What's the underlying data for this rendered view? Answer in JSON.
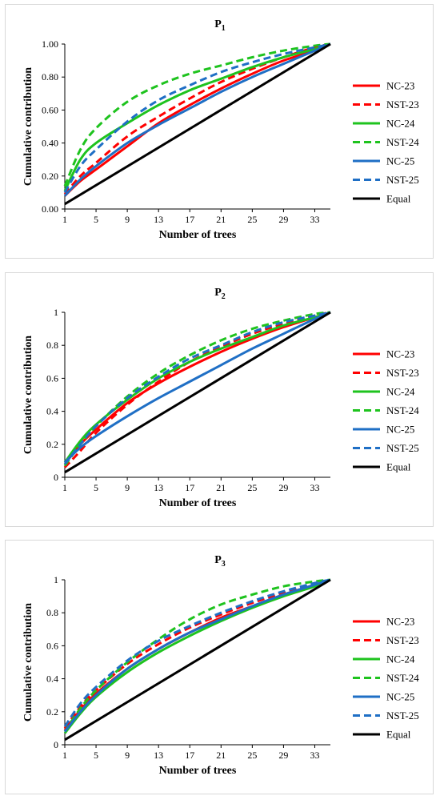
{
  "chart_data": [
    {
      "type": "line",
      "title": "P1",
      "title_main": "P",
      "title_sub": "1",
      "xlabel": "Number of trees",
      "ylabel": "Cumulative contribution",
      "xlim": [
        1,
        35
      ],
      "ylim": [
        0,
        1
      ],
      "xticks": [
        1,
        5,
        9,
        13,
        17,
        21,
        25,
        29,
        33
      ],
      "yticks": [
        0,
        0.2,
        0.4,
        0.6,
        0.8,
        1.0
      ],
      "ytick_labels": [
        "0.00",
        "0.20",
        "0.40",
        "0.60",
        "0.80",
        "1.00"
      ],
      "legend_position": "right",
      "grid": false,
      "series": [
        {
          "name": "NC-23",
          "color": "#ff0000",
          "dash": false,
          "x": [
            1,
            3,
            5,
            9,
            13,
            17,
            21,
            25,
            29,
            33,
            35
          ],
          "y": [
            0.08,
            0.17,
            0.24,
            0.38,
            0.52,
            0.63,
            0.73,
            0.82,
            0.9,
            0.96,
            1.0
          ]
        },
        {
          "name": "NST-23",
          "color": "#ff0000",
          "dash": true,
          "x": [
            1,
            3,
            5,
            9,
            13,
            17,
            21,
            25,
            29,
            33,
            35
          ],
          "y": [
            0.09,
            0.2,
            0.28,
            0.44,
            0.56,
            0.67,
            0.77,
            0.85,
            0.92,
            0.98,
            1.0
          ]
        },
        {
          "name": "NC-24",
          "color": "#1ec31e",
          "dash": false,
          "x": [
            1,
            3,
            5,
            9,
            13,
            17,
            21,
            25,
            29,
            33,
            35
          ],
          "y": [
            0.11,
            0.3,
            0.4,
            0.52,
            0.63,
            0.72,
            0.79,
            0.86,
            0.92,
            0.97,
            1.0
          ]
        },
        {
          "name": "NST-24",
          "color": "#1ec31e",
          "dash": true,
          "x": [
            1,
            3,
            5,
            9,
            13,
            17,
            21,
            25,
            29,
            33,
            35
          ],
          "y": [
            0.14,
            0.36,
            0.49,
            0.65,
            0.75,
            0.82,
            0.87,
            0.92,
            0.96,
            0.99,
            1.0
          ]
        },
        {
          "name": "NC-25",
          "color": "#1f6fc5",
          "dash": false,
          "x": [
            1,
            3,
            5,
            9,
            13,
            17,
            21,
            25,
            29,
            33,
            35
          ],
          "y": [
            0.08,
            0.18,
            0.26,
            0.4,
            0.51,
            0.61,
            0.71,
            0.8,
            0.88,
            0.96,
            1.0
          ]
        },
        {
          "name": "NST-25",
          "color": "#1f6fc5",
          "dash": true,
          "x": [
            1,
            3,
            5,
            9,
            13,
            17,
            21,
            25,
            29,
            33,
            35
          ],
          "y": [
            0.1,
            0.26,
            0.36,
            0.53,
            0.66,
            0.75,
            0.83,
            0.89,
            0.94,
            0.98,
            1.0
          ]
        },
        {
          "name": "Equal",
          "color": "#000000",
          "dash": false,
          "x": [
            1,
            35
          ],
          "y": [
            0.03,
            1.0
          ]
        }
      ]
    },
    {
      "type": "line",
      "title": "P2",
      "title_main": "P",
      "title_sub": "2",
      "xlabel": "Number of trees",
      "ylabel": "Cumulative contribution",
      "xlim": [
        1,
        35
      ],
      "ylim": [
        0,
        1
      ],
      "xticks": [
        1,
        5,
        9,
        13,
        17,
        21,
        25,
        29,
        33
      ],
      "yticks": [
        0,
        0.2,
        0.4,
        0.6,
        0.8,
        1.0
      ],
      "ytick_labels": [
        "0",
        "0.2",
        "0.4",
        "0.6",
        "0.8",
        "1"
      ],
      "legend_position": "right",
      "grid": false,
      "series": [
        {
          "name": "NC-23",
          "color": "#ff0000",
          "dash": false,
          "x": [
            1,
            3,
            5,
            9,
            13,
            17,
            21,
            25,
            29,
            33,
            35
          ],
          "y": [
            0.08,
            0.2,
            0.29,
            0.45,
            0.57,
            0.67,
            0.76,
            0.84,
            0.91,
            0.97,
            1.0
          ]
        },
        {
          "name": "NST-23",
          "color": "#ff0000",
          "dash": true,
          "x": [
            1,
            3,
            5,
            9,
            13,
            17,
            21,
            25,
            29,
            33,
            35
          ],
          "y": [
            0.06,
            0.16,
            0.27,
            0.44,
            0.58,
            0.7,
            0.79,
            0.87,
            0.93,
            0.98,
            1.0
          ]
        },
        {
          "name": "NC-24",
          "color": "#1ec31e",
          "dash": false,
          "x": [
            1,
            3,
            5,
            9,
            13,
            17,
            21,
            25,
            29,
            33,
            35
          ],
          "y": [
            0.09,
            0.22,
            0.32,
            0.47,
            0.6,
            0.7,
            0.78,
            0.85,
            0.92,
            0.97,
            1.0
          ]
        },
        {
          "name": "NST-24",
          "color": "#1ec31e",
          "dash": true,
          "x": [
            1,
            3,
            5,
            9,
            13,
            17,
            21,
            25,
            29,
            33,
            35
          ],
          "y": [
            0.07,
            0.2,
            0.31,
            0.49,
            0.63,
            0.74,
            0.83,
            0.9,
            0.95,
            0.99,
            1.0
          ]
        },
        {
          "name": "NC-25",
          "color": "#1f6fc5",
          "dash": false,
          "x": [
            1,
            3,
            5,
            9,
            13,
            17,
            21,
            25,
            29,
            33,
            35
          ],
          "y": [
            0.09,
            0.18,
            0.25,
            0.37,
            0.48,
            0.58,
            0.68,
            0.78,
            0.87,
            0.96,
            1.0
          ]
        },
        {
          "name": "NST-25",
          "color": "#1f6fc5",
          "dash": true,
          "x": [
            1,
            3,
            5,
            9,
            13,
            17,
            21,
            25,
            29,
            33,
            35
          ],
          "y": [
            0.08,
            0.2,
            0.31,
            0.48,
            0.61,
            0.72,
            0.8,
            0.88,
            0.94,
            0.98,
            1.0
          ]
        },
        {
          "name": "Equal",
          "color": "#000000",
          "dash": false,
          "x": [
            1,
            35
          ],
          "y": [
            0.03,
            1.0
          ]
        }
      ]
    },
    {
      "type": "line",
      "title": "P3",
      "title_main": "P",
      "title_sub": "3",
      "xlabel": "Number of trees",
      "ylabel": "Cumulative contribution",
      "xlim": [
        1,
        35
      ],
      "ylim": [
        0,
        1
      ],
      "xticks": [
        1,
        5,
        9,
        13,
        17,
        21,
        25,
        29,
        33
      ],
      "yticks": [
        0,
        0.2,
        0.4,
        0.6,
        0.8,
        1.0
      ],
      "ytick_labels": [
        "0",
        "0.2",
        "0.4",
        "0.6",
        "0.8",
        "1"
      ],
      "legend_position": "right",
      "grid": false,
      "series": [
        {
          "name": "NC-23",
          "color": "#ff0000",
          "dash": false,
          "x": [
            1,
            3,
            5,
            9,
            13,
            17,
            21,
            25,
            29,
            33,
            35
          ],
          "y": [
            0.09,
            0.21,
            0.31,
            0.46,
            0.58,
            0.68,
            0.77,
            0.84,
            0.91,
            0.97,
            1.0
          ]
        },
        {
          "name": "NST-23",
          "color": "#ff0000",
          "dash": true,
          "x": [
            1,
            3,
            5,
            9,
            13,
            17,
            21,
            25,
            29,
            33,
            35
          ],
          "y": [
            0.1,
            0.23,
            0.33,
            0.49,
            0.61,
            0.71,
            0.79,
            0.86,
            0.92,
            0.97,
            1.0
          ]
        },
        {
          "name": "NC-24",
          "color": "#1ec31e",
          "dash": false,
          "x": [
            1,
            3,
            5,
            9,
            13,
            17,
            21,
            25,
            29,
            33,
            35
          ],
          "y": [
            0.07,
            0.19,
            0.29,
            0.44,
            0.56,
            0.66,
            0.75,
            0.83,
            0.9,
            0.96,
            1.0
          ]
        },
        {
          "name": "NST-24",
          "color": "#1ec31e",
          "dash": true,
          "x": [
            1,
            3,
            5,
            9,
            13,
            17,
            21,
            25,
            29,
            33,
            35
          ],
          "y": [
            0.08,
            0.22,
            0.33,
            0.5,
            0.64,
            0.76,
            0.85,
            0.91,
            0.96,
            0.99,
            1.0
          ]
        },
        {
          "name": "NC-25",
          "color": "#1f6fc5",
          "dash": false,
          "x": [
            1,
            3,
            5,
            9,
            13,
            17,
            21,
            25,
            29,
            33,
            35
          ],
          "y": [
            0.08,
            0.2,
            0.3,
            0.46,
            0.58,
            0.68,
            0.76,
            0.84,
            0.91,
            0.97,
            1.0
          ]
        },
        {
          "name": "NST-25",
          "color": "#1f6fc5",
          "dash": true,
          "x": [
            1,
            3,
            5,
            9,
            13,
            17,
            21,
            25,
            29,
            33,
            35
          ],
          "y": [
            0.11,
            0.25,
            0.35,
            0.51,
            0.63,
            0.72,
            0.8,
            0.87,
            0.93,
            0.98,
            1.0
          ]
        },
        {
          "name": "Equal",
          "color": "#000000",
          "dash": false,
          "x": [
            1,
            35
          ],
          "y": [
            0.03,
            1.0
          ]
        }
      ]
    }
  ]
}
